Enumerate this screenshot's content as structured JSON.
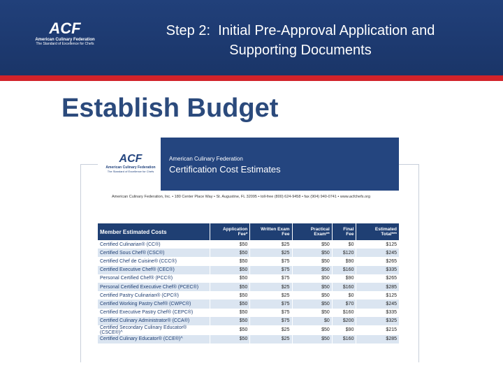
{
  "header": {
    "logo": {
      "mark": "ACF",
      "organization": "American Culinary Federation",
      "tagline": "The Standard of Excellence for Chefs"
    },
    "title_lines": [
      "Step 2:  Initial Pre-Approval Application and",
      "Supporting Documents"
    ]
  },
  "heading": "Establish Budget",
  "document": {
    "logo": {
      "mark": "ACF",
      "organization": "American Culinary Federation",
      "tagline": "The Standard of Excellence for Chefs"
    },
    "organization": "American Culinary Federation",
    "title": "Certification Cost Estimates",
    "address": "American Culinary Federation, Inc. • 180 Center Place Way • St. Augustine, FL 32095 • toll-free (800) 624-9458 • fax (904) 940-0741 • www.acfchefs.org",
    "table": {
      "columns": [
        "Member Estimated Costs",
        "Application Fee*",
        "Written Exam Fee",
        "Practical Exam**",
        "Final Fee",
        "Estimated Total***"
      ],
      "rows": [
        [
          "Certified Culinarian® (CC®)",
          "$50",
          "$25",
          "$50",
          "$0",
          "$125"
        ],
        [
          "Certified Sous Chef® (CSC®)",
          "$50",
          "$25",
          "$50",
          "$120",
          "$245"
        ],
        [
          "Certified Chef de Cuisine® (CCC®)",
          "$50",
          "$75",
          "$50",
          "$90",
          "$265"
        ],
        [
          "Certified Executive Chef® (CEC®)",
          "$50",
          "$75",
          "$50",
          "$160",
          "$335"
        ],
        [
          "Personal Certified Chef® (PCC®)",
          "$50",
          "$75",
          "$50",
          "$90",
          "$265"
        ],
        [
          "Personal Certified Executive Chef® (PCEC®)",
          "$50",
          "$25",
          "$50",
          "$160",
          "$285"
        ],
        [
          "Certified Pastry Culinarian® (CPC®)",
          "$50",
          "$25",
          "$50",
          "$0",
          "$125"
        ],
        [
          "Certified Working Pastry Chef® (CWPC®)",
          "$50",
          "$75",
          "$50",
          "$70",
          "$245"
        ],
        [
          "Certified Executive Pastry Chef® (CEPC®)",
          "$50",
          "$75",
          "$50",
          "$160",
          "$335"
        ],
        [
          "Certified Culinary Administrator® (CCA®)",
          "$50",
          "$75",
          "$0",
          "$200",
          "$325"
        ],
        [
          "Certified Secondary Culinary Educator® (CSCE®)^",
          "$50",
          "$25",
          "$50",
          "$90",
          "$215"
        ],
        [
          "Certified Culinary Educator® (CCE®)^",
          "$50",
          "$25",
          "$50",
          "$160",
          "$285"
        ]
      ]
    }
  }
}
